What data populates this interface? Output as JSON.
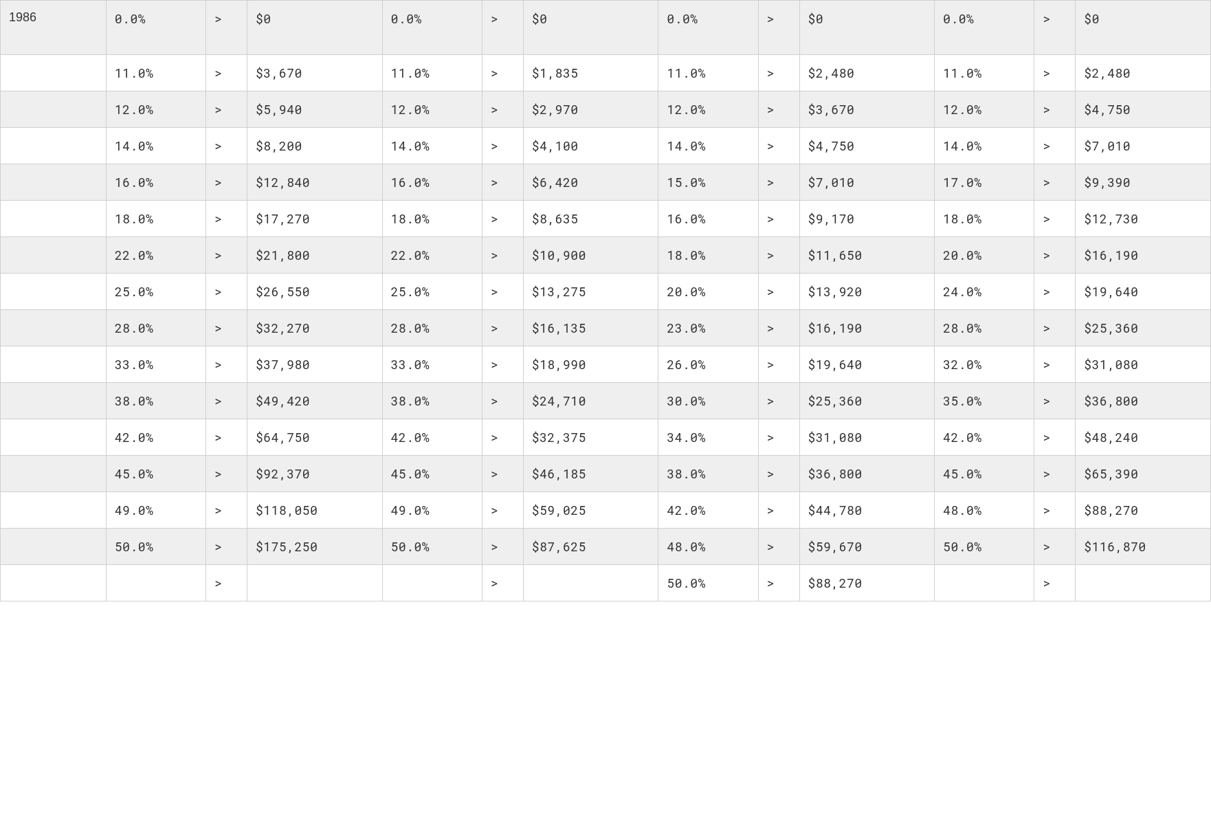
{
  "table": {
    "type": "table",
    "background_even": "#ffffff",
    "background_odd": "#efefef",
    "border_color": "#d0d0d0",
    "text_color": "#333333",
    "font_family_mono": "Roboto Mono, Courier New, monospace",
    "font_size_pt": 14,
    "gt": ">",
    "year_label": "1986",
    "column_groups": 4,
    "columns_per_group": [
      "pct",
      "gt",
      "amount"
    ],
    "rows": [
      {
        "year": "1986",
        "g1": {
          "pct": "0.0%",
          "amt": "$0"
        },
        "g2": {
          "pct": "0.0%",
          "amt": "$0"
        },
        "g3": {
          "pct": "0.0%",
          "amt": "$0"
        },
        "g4": {
          "pct": "0.0%",
          "amt": "$0"
        }
      },
      {
        "year": "",
        "g1": {
          "pct": "11.0%",
          "amt": "$3,670"
        },
        "g2": {
          "pct": "11.0%",
          "amt": "$1,835"
        },
        "g3": {
          "pct": "11.0%",
          "amt": "$2,480"
        },
        "g4": {
          "pct": "11.0%",
          "amt": "$2,480"
        }
      },
      {
        "year": "",
        "g1": {
          "pct": "12.0%",
          "amt": "$5,940"
        },
        "g2": {
          "pct": "12.0%",
          "amt": "$2,970"
        },
        "g3": {
          "pct": "12.0%",
          "amt": "$3,670"
        },
        "g4": {
          "pct": "12.0%",
          "amt": "$4,750"
        }
      },
      {
        "year": "",
        "g1": {
          "pct": "14.0%",
          "amt": "$8,200"
        },
        "g2": {
          "pct": "14.0%",
          "amt": "$4,100"
        },
        "g3": {
          "pct": "14.0%",
          "amt": "$4,750"
        },
        "g4": {
          "pct": "14.0%",
          "amt": "$7,010"
        }
      },
      {
        "year": "",
        "g1": {
          "pct": "16.0%",
          "amt": "$12,840"
        },
        "g2": {
          "pct": "16.0%",
          "amt": "$6,420"
        },
        "g3": {
          "pct": "15.0%",
          "amt": "$7,010"
        },
        "g4": {
          "pct": "17.0%",
          "amt": "$9,390"
        }
      },
      {
        "year": "",
        "g1": {
          "pct": "18.0%",
          "amt": "$17,270"
        },
        "g2": {
          "pct": "18.0%",
          "amt": "$8,635"
        },
        "g3": {
          "pct": "16.0%",
          "amt": "$9,170"
        },
        "g4": {
          "pct": "18.0%",
          "amt": "$12,730"
        }
      },
      {
        "year": "",
        "g1": {
          "pct": "22.0%",
          "amt": "$21,800"
        },
        "g2": {
          "pct": "22.0%",
          "amt": "$10,900"
        },
        "g3": {
          "pct": "18.0%",
          "amt": "$11,650"
        },
        "g4": {
          "pct": "20.0%",
          "amt": "$16,190"
        }
      },
      {
        "year": "",
        "g1": {
          "pct": "25.0%",
          "amt": "$26,550"
        },
        "g2": {
          "pct": "25.0%",
          "amt": "$13,275"
        },
        "g3": {
          "pct": "20.0%",
          "amt": "$13,920"
        },
        "g4": {
          "pct": "24.0%",
          "amt": "$19,640"
        }
      },
      {
        "year": "",
        "g1": {
          "pct": "28.0%",
          "amt": "$32,270"
        },
        "g2": {
          "pct": "28.0%",
          "amt": "$16,135"
        },
        "g3": {
          "pct": "23.0%",
          "amt": "$16,190"
        },
        "g4": {
          "pct": "28.0%",
          "amt": "$25,360"
        }
      },
      {
        "year": "",
        "g1": {
          "pct": "33.0%",
          "amt": "$37,980"
        },
        "g2": {
          "pct": "33.0%",
          "amt": "$18,990"
        },
        "g3": {
          "pct": "26.0%",
          "amt": "$19,640"
        },
        "g4": {
          "pct": "32.0%",
          "amt": "$31,080"
        }
      },
      {
        "year": "",
        "g1": {
          "pct": "38.0%",
          "amt": "$49,420"
        },
        "g2": {
          "pct": "38.0%",
          "amt": "$24,710"
        },
        "g3": {
          "pct": "30.0%",
          "amt": "$25,360"
        },
        "g4": {
          "pct": "35.0%",
          "amt": "$36,800"
        }
      },
      {
        "year": "",
        "g1": {
          "pct": "42.0%",
          "amt": "$64,750"
        },
        "g2": {
          "pct": "42.0%",
          "amt": "$32,375"
        },
        "g3": {
          "pct": "34.0%",
          "amt": "$31,080"
        },
        "g4": {
          "pct": "42.0%",
          "amt": "$48,240"
        }
      },
      {
        "year": "",
        "g1": {
          "pct": "45.0%",
          "amt": "$92,370"
        },
        "g2": {
          "pct": "45.0%",
          "amt": "$46,185"
        },
        "g3": {
          "pct": "38.0%",
          "amt": "$36,800"
        },
        "g4": {
          "pct": "45.0%",
          "amt": "$65,390"
        }
      },
      {
        "year": "",
        "g1": {
          "pct": "49.0%",
          "amt": "$118,050"
        },
        "g2": {
          "pct": "49.0%",
          "amt": "$59,025"
        },
        "g3": {
          "pct": "42.0%",
          "amt": "$44,780"
        },
        "g4": {
          "pct": "48.0%",
          "amt": "$88,270"
        }
      },
      {
        "year": "",
        "g1": {
          "pct": "50.0%",
          "amt": "$175,250"
        },
        "g2": {
          "pct": "50.0%",
          "amt": "$87,625"
        },
        "g3": {
          "pct": "48.0%",
          "amt": "$59,670"
        },
        "g4": {
          "pct": "50.0%",
          "amt": "$116,870"
        }
      },
      {
        "year": "",
        "g1": {
          "pct": "",
          "amt": ""
        },
        "g2": {
          "pct": "",
          "amt": ""
        },
        "g3": {
          "pct": "50.0%",
          "amt": "$88,270"
        },
        "g4": {
          "pct": "",
          "amt": ""
        }
      }
    ]
  }
}
